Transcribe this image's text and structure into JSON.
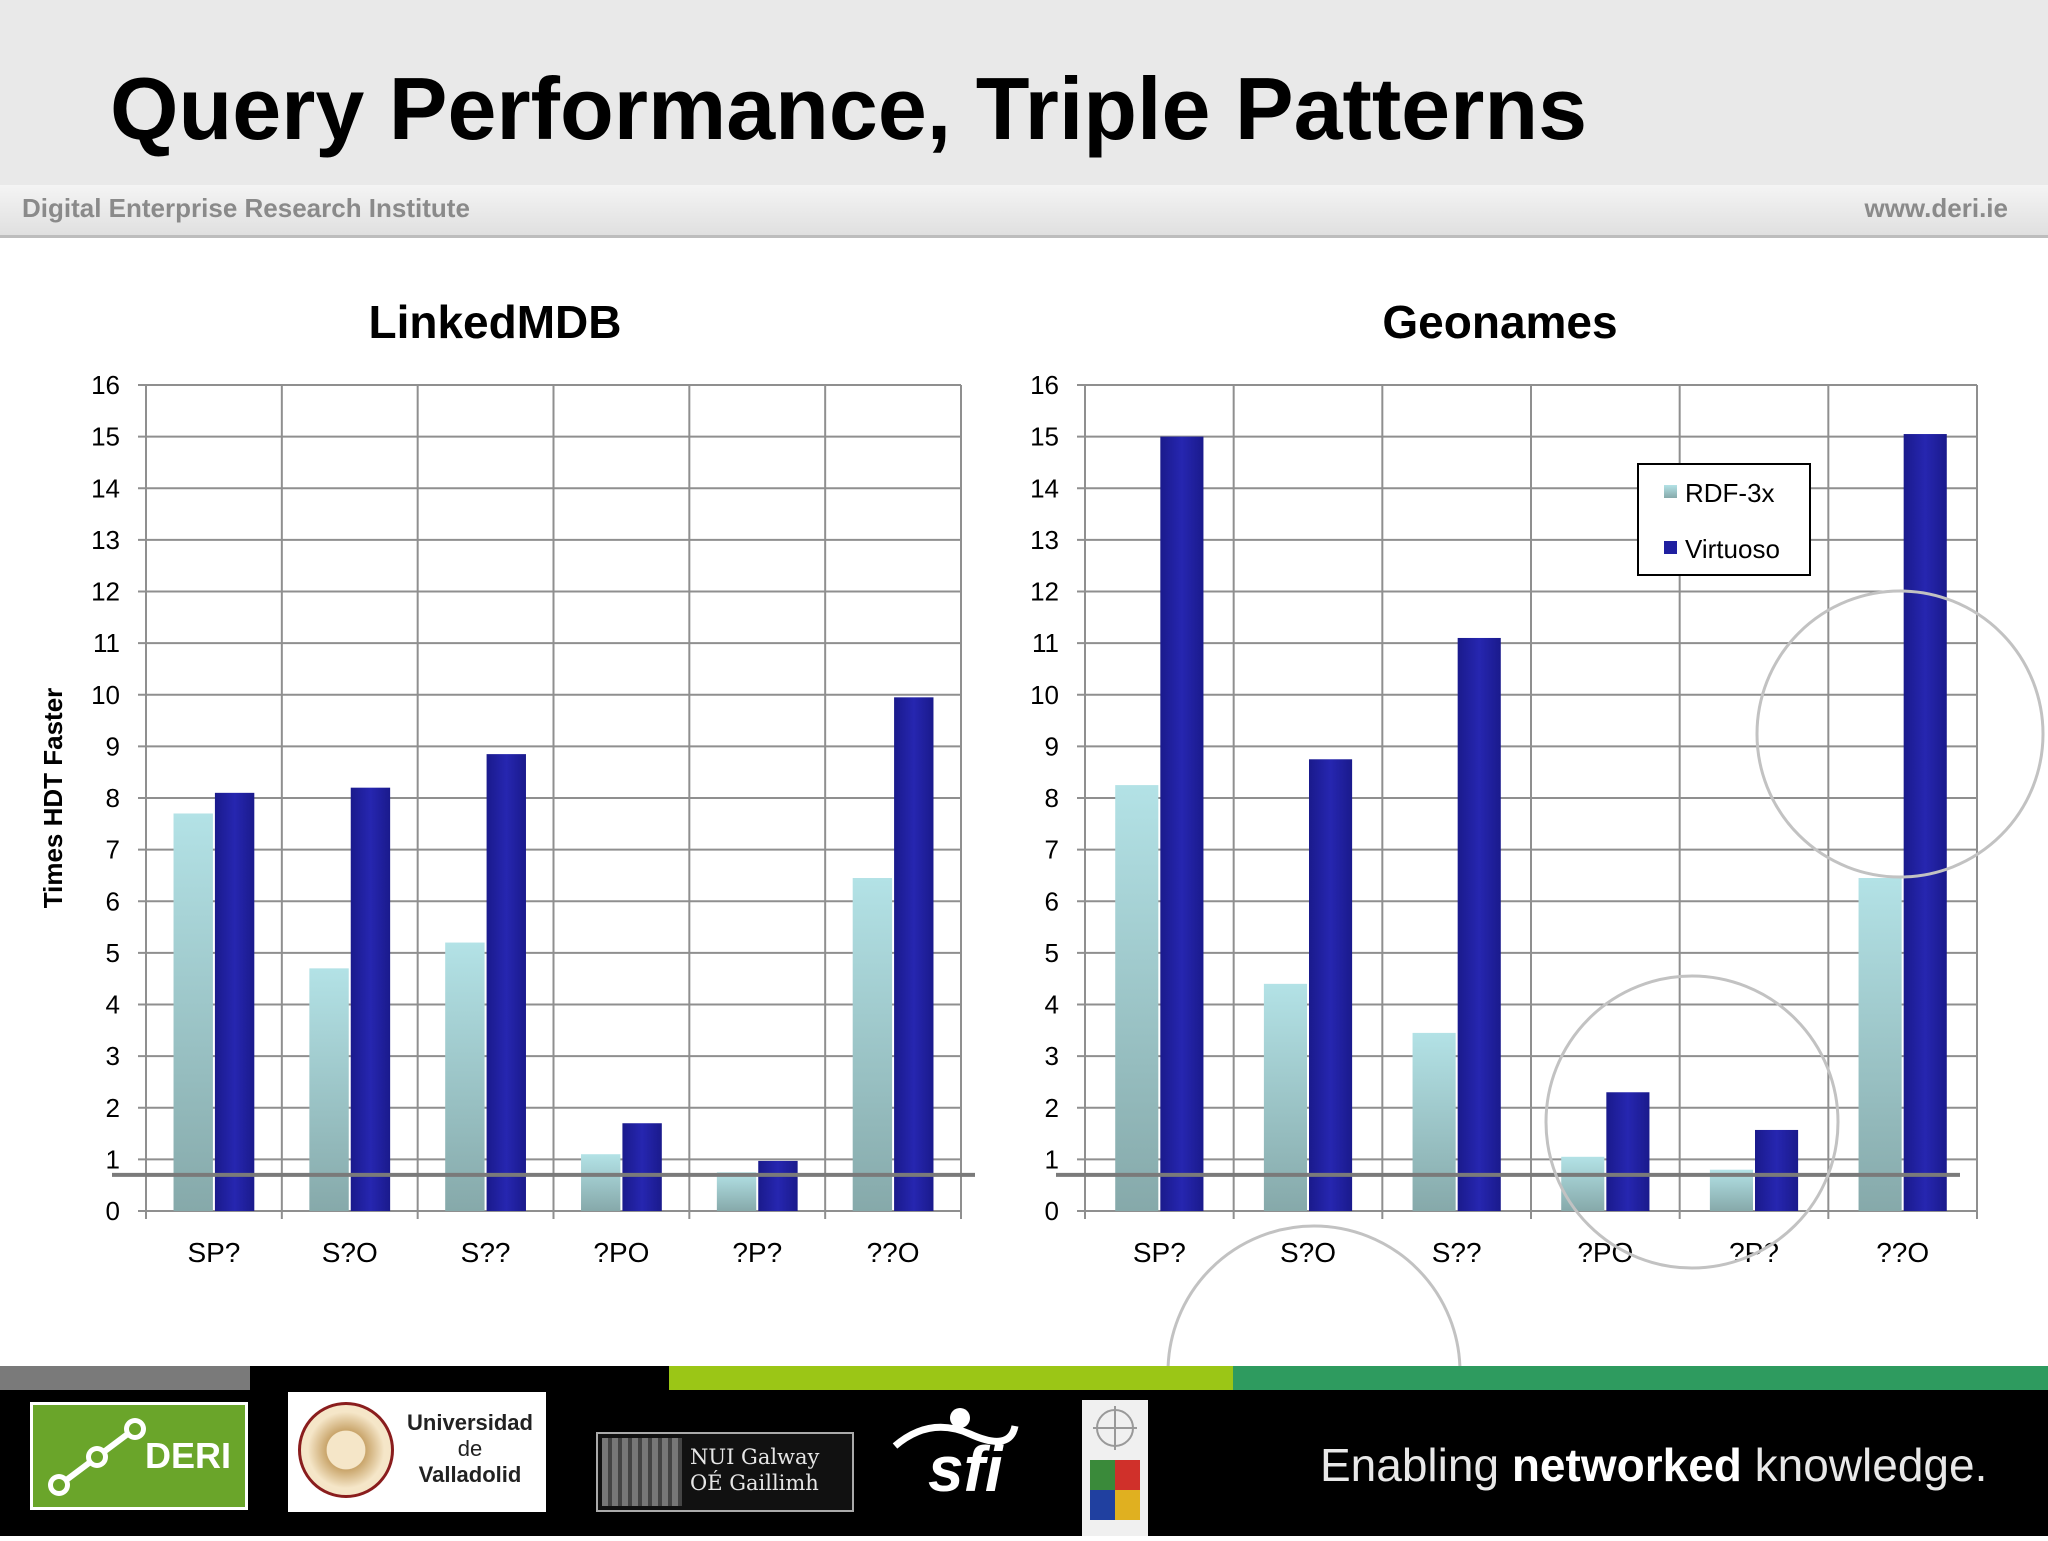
{
  "slide": {
    "title": "Query Performance, Triple Patterns",
    "org_name": "Digital Enterprise Research Institute",
    "site_url": "www.deri.ie"
  },
  "footer": {
    "logos": [
      {
        "label": "DERI"
      },
      {
        "label_line1": "Universidad",
        "label_line2": "de",
        "label_line3": "Valladolid"
      },
      {
        "label_line1": "NUI Galway",
        "label_line2": "OÉ Gaillimh"
      },
      {
        "label": "sfi"
      }
    ],
    "tagline_before": "Enabling ",
    "tagline_bold": "networked",
    "tagline_after": " knowledge.",
    "stripe_colors": [
      "#7a7a7a",
      "#000000",
      "#9bc616",
      "#2e9b5f"
    ]
  },
  "colors": {
    "rdf3x": "#a9dadd",
    "rdf3x_dark": "#8aa8a8",
    "virtuoso": "#2020a0",
    "grid": "#8f8f8f",
    "baseline": "#7a7a7a",
    "annotation_circle": "#c2c2c2"
  },
  "chart_data": [
    {
      "type": "bar",
      "title": "LinkedMDB",
      "ylabel": "Times HDT Faster",
      "xlabel": "",
      "ylim": [
        0,
        16
      ],
      "yticks": [
        0,
        1,
        2,
        3,
        4,
        5,
        6,
        7,
        8,
        9,
        10,
        11,
        12,
        13,
        14,
        15,
        16
      ],
      "grid": true,
      "categories": [
        "SP?",
        "S?O",
        "S??",
        "?PO",
        "?P?",
        "??O"
      ],
      "series": [
        {
          "name": "RDF-3x",
          "values": [
            7.7,
            4.7,
            5.2,
            1.1,
            0.75,
            6.45
          ]
        },
        {
          "name": "Virtuoso",
          "values": [
            8.1,
            8.2,
            8.85,
            1.7,
            0.97,
            9.95
          ]
        }
      ],
      "reference_line": 0.7
    },
    {
      "type": "bar",
      "title": "Geonames",
      "ylabel": "",
      "xlabel": "",
      "ylim": [
        0,
        16
      ],
      "yticks": [
        0,
        1,
        2,
        3,
        4,
        5,
        6,
        7,
        8,
        9,
        10,
        11,
        12,
        13,
        14,
        15,
        16
      ],
      "grid": true,
      "legend": "top-right",
      "categories": [
        "SP?",
        "S?O",
        "S??",
        "?PO",
        "?P?",
        "??O"
      ],
      "series": [
        {
          "name": "RDF-3x",
          "values": [
            8.25,
            4.4,
            3.45,
            1.05,
            0.8,
            6.45
          ]
        },
        {
          "name": "Virtuoso",
          "values": [
            15.0,
            8.75,
            11.1,
            2.3,
            1.57,
            15.05
          ]
        }
      ],
      "reference_line": 0.7
    }
  ]
}
